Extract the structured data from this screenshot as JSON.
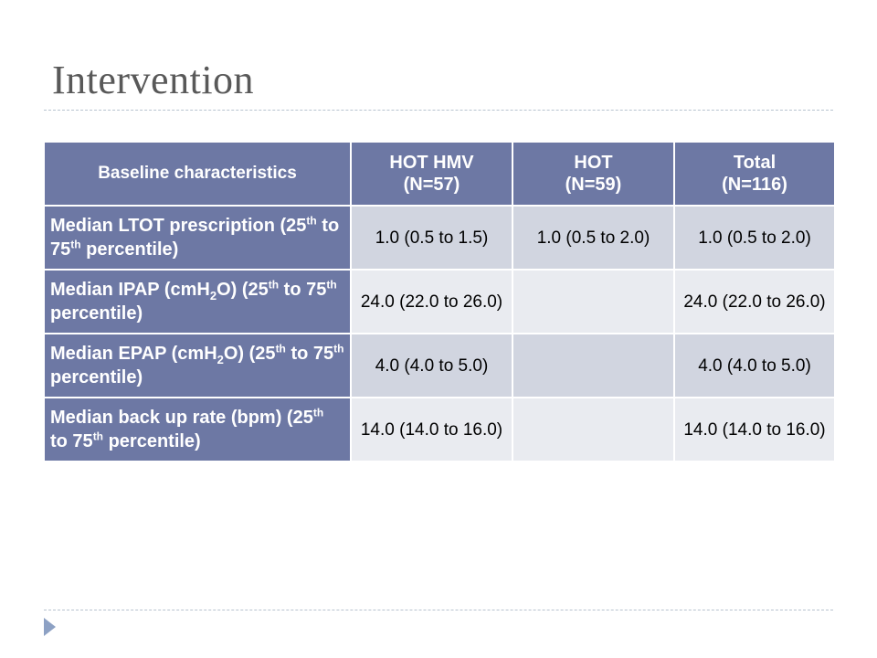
{
  "slide": {
    "title": "Intervention"
  },
  "table": {
    "headers": [
      {
        "line1": "Baseline characteristics",
        "line2": ""
      },
      {
        "line1": "HOT HMV",
        "line2": "(N=57)"
      },
      {
        "line1": "HOT",
        "line2": "(N=59)"
      },
      {
        "line1": "Total",
        "line2": "(N=116)"
      }
    ],
    "rows": [
      {
        "label": {
          "a": "Median LTOT prescription (25",
          "b": "th",
          "c": " to 75",
          "d": "th",
          "e": " percentile)"
        },
        "values": [
          "1.0 (0.5 to 1.5)",
          "1.0 (0.5 to 2.0)",
          "1.0 (0.5 to 2.0)"
        ]
      },
      {
        "label": {
          "a": "Median IPAP (cmH",
          "sub": "2",
          "b": "O) (25",
          "c": "th",
          "d": " to 75",
          "e": "th",
          "f": " percentile)"
        },
        "values": [
          "24.0 (22.0 to 26.0)",
          "",
          "24.0 (22.0 to 26.0)"
        ]
      },
      {
        "label": {
          "a": "Median EPAP (cmH",
          "sub": "2",
          "b": "O) (25",
          "c": "th",
          "d": " to 75",
          "e": "th",
          "f": " percentile)"
        },
        "values": [
          "4.0 (4.0 to 5.0)",
          "",
          "4.0 (4.0 to 5.0)"
        ]
      },
      {
        "label": {
          "a": "Median back up rate (bpm) (25",
          "b": "th",
          "c": " to 75",
          "d": "th",
          "e": " percentile)"
        },
        "values": [
          "14.0 (14.0 to 16.0)",
          "",
          "14.0 (14.0 to 16.0)"
        ]
      }
    ]
  },
  "colors": {
    "header_bg": "#6d78a4",
    "row_odd": "#d1d5e0",
    "row_even": "#e9ebf0",
    "bullet": "#8da1c4"
  },
  "icons": {
    "footer_bullet": "triangle-bullet-icon"
  }
}
